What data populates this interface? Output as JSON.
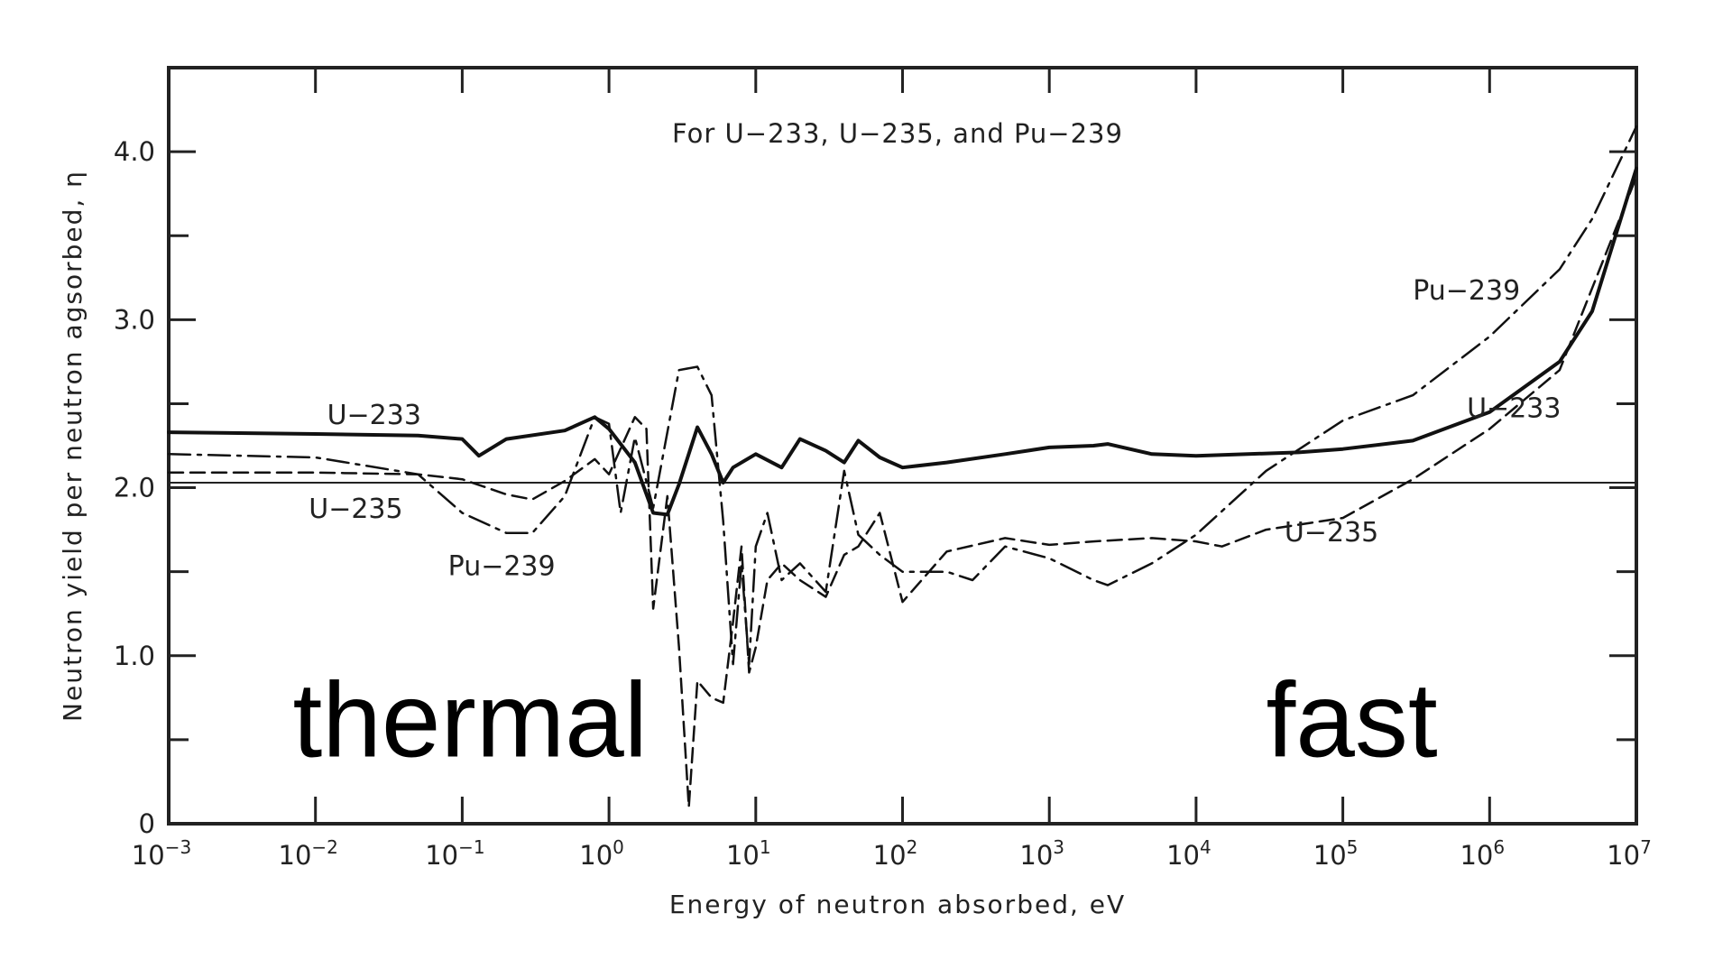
{
  "chart_data": {
    "type": "line",
    "title": "For U−233, U−235, and Pu−239",
    "xlabel": "Energy of neutron absorbed, eV",
    "ylabel": "Neutron yield per neutron agsorbed, η",
    "x_scale": "log",
    "xlim": [
      0.001,
      10000000
    ],
    "ylim": [
      0,
      4.5
    ],
    "grid": false,
    "x_ticks": [
      {
        "value": 0.001,
        "base": "10",
        "exp": "−3"
      },
      {
        "value": 0.01,
        "base": "10",
        "exp": "−2"
      },
      {
        "value": 0.1,
        "base": "10",
        "exp": "−1"
      },
      {
        "value": 1,
        "base": "10",
        "exp": "0"
      },
      {
        "value": 10,
        "base": "10",
        "exp": "1"
      },
      {
        "value": 100,
        "base": "10",
        "exp": "2"
      },
      {
        "value": 1000,
        "base": "10",
        "exp": "3"
      },
      {
        "value": 10000,
        "base": "10",
        "exp": "4"
      },
      {
        "value": 100000,
        "base": "10",
        "exp": "5"
      },
      {
        "value": 1000000,
        "base": "10",
        "exp": "6"
      },
      {
        "value": 10000000,
        "base": "10",
        "exp": "7"
      }
    ],
    "y_ticks": [
      {
        "value": 0,
        "label": "0"
      },
      {
        "value": 1,
        "label": "1.0"
      },
      {
        "value": 2,
        "label": "2.0"
      },
      {
        "value": 3,
        "label": "3.0"
      },
      {
        "value": 4,
        "label": "4.0"
      }
    ],
    "reference_line": 2.03,
    "series": [
      {
        "name": "U−233",
        "style": "solid",
        "x": [
          0.001,
          0.01,
          0.05,
          0.1,
          0.13,
          0.2,
          0.5,
          0.8,
          1.0,
          1.5,
          2.0,
          2.5,
          3.0,
          4.0,
          5.0,
          6.0,
          7.0,
          10,
          15,
          20,
          30,
          40,
          50,
          70,
          100,
          200,
          500,
          1000,
          2000,
          2500,
          5000,
          10000,
          50000,
          100000,
          300000,
          1000000,
          3000000,
          5000000,
          10000000
        ],
        "y": [
          2.33,
          2.32,
          2.31,
          2.29,
          2.19,
          2.29,
          2.34,
          2.42,
          2.35,
          2.15,
          1.85,
          1.84,
          2.02,
          2.36,
          2.2,
          2.03,
          2.12,
          2.2,
          2.12,
          2.29,
          2.22,
          2.15,
          2.28,
          2.18,
          2.12,
          2.15,
          2.2,
          2.24,
          2.25,
          2.26,
          2.2,
          2.19,
          2.21,
          2.23,
          2.28,
          2.45,
          2.75,
          3.05,
          3.9
        ]
      },
      {
        "name": "U−235",
        "style": "dashed",
        "x": [
          0.001,
          0.01,
          0.05,
          0.1,
          0.2,
          0.3,
          0.5,
          0.8,
          1.0,
          1.5,
          1.8,
          2.0,
          2.5,
          3.0,
          3.5,
          4.0,
          5.0,
          6.0,
          7.0,
          8.0,
          9.0,
          10,
          12,
          15,
          20,
          30,
          40,
          50,
          70,
          100,
          200,
          500,
          1000,
          2000,
          5000,
          10000,
          15000,
          30000,
          100000,
          300000,
          1000000,
          3000000,
          10000000
        ],
        "y": [
          2.09,
          2.09,
          2.08,
          2.05,
          1.96,
          1.93,
          2.04,
          2.17,
          2.08,
          2.42,
          2.35,
          1.28,
          1.95,
          1.05,
          0.1,
          0.85,
          0.75,
          0.72,
          1.2,
          1.65,
          0.9,
          1.05,
          1.45,
          1.55,
          1.45,
          1.35,
          1.6,
          1.65,
          1.85,
          1.32,
          1.62,
          1.7,
          1.66,
          1.68,
          1.7,
          1.68,
          1.65,
          1.75,
          1.82,
          2.05,
          2.35,
          2.7,
          3.85
        ]
      },
      {
        "name": "Pu−239",
        "style": "dash-dot",
        "x": [
          0.001,
          0.01,
          0.05,
          0.1,
          0.2,
          0.3,
          0.5,
          0.8,
          1.0,
          1.2,
          1.5,
          2.0,
          3.0,
          4.0,
          5.0,
          6.0,
          7.0,
          8.0,
          9.0,
          10,
          12,
          15,
          20,
          30,
          40,
          50,
          70,
          100,
          200,
          300,
          500,
          1000,
          2000,
          2500,
          5000,
          10000,
          30000,
          100000,
          300000,
          1000000,
          3000000,
          5000000,
          10000000
        ],
        "y": [
          2.2,
          2.18,
          2.08,
          1.85,
          1.73,
          1.73,
          1.95,
          2.42,
          2.38,
          1.85,
          2.3,
          1.88,
          2.7,
          2.72,
          2.55,
          1.8,
          0.95,
          1.55,
          0.95,
          1.65,
          1.85,
          1.45,
          1.55,
          1.38,
          2.1,
          1.72,
          1.6,
          1.5,
          1.5,
          1.45,
          1.65,
          1.58,
          1.45,
          1.42,
          1.55,
          1.72,
          2.1,
          2.4,
          2.55,
          2.9,
          3.3,
          3.6,
          4.15
        ]
      }
    ],
    "annotations": [
      {
        "text": "U−233",
        "x": 0.012,
        "y": 2.38
      },
      {
        "text": "U−235",
        "x": 0.009,
        "y": 1.82
      },
      {
        "text": "Pu−239",
        "x": 0.08,
        "y": 1.48
      },
      {
        "text": "Pu−239",
        "x": 300000,
        "y": 3.12
      },
      {
        "text": "U−233",
        "x": 700000,
        "y": 2.42
      },
      {
        "text": "U−235",
        "x": 40000,
        "y": 1.68
      }
    ],
    "overlay_labels": [
      {
        "text": "thermal",
        "x": 0.007,
        "y": 0.4
      },
      {
        "text": "fast",
        "x": 30000,
        "y": 0.4
      }
    ]
  }
}
